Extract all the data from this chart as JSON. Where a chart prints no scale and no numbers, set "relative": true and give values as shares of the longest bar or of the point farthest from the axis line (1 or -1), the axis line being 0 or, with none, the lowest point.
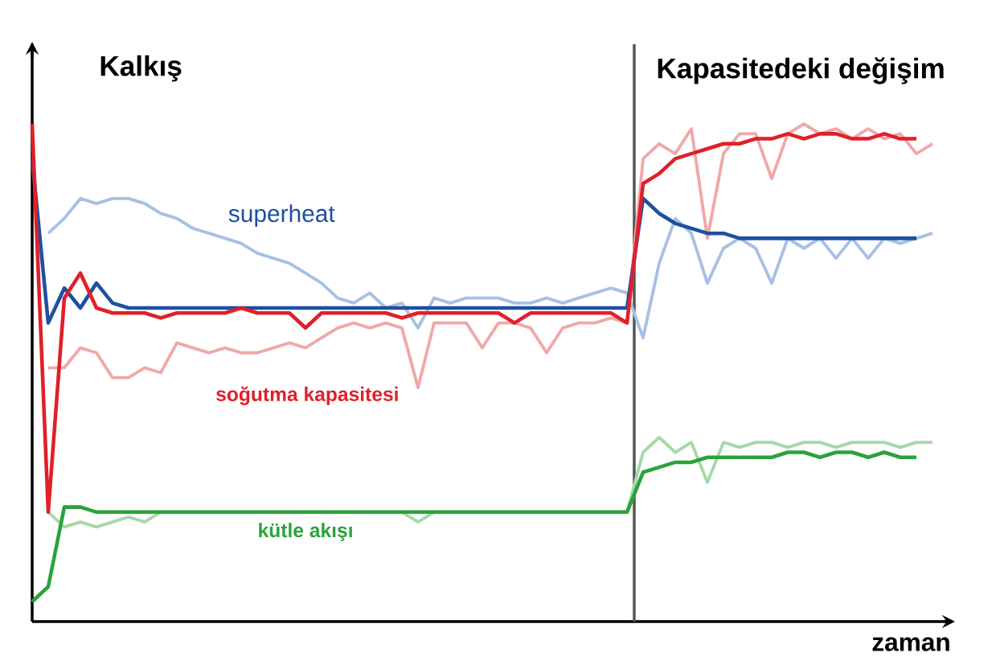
{
  "chart_data": {
    "type": "line",
    "relative": true,
    "xlabel": "zaman",
    "annotations": [
      "Kalkış",
      "Kapasitedeki değişim"
    ],
    "categories": [
      null,
      null,
      null,
      null,
      null,
      null,
      null,
      null,
      null,
      null,
      null,
      null,
      null,
      null,
      null,
      null,
      null,
      null,
      null,
      null,
      null,
      null,
      null,
      null,
      null,
      null,
      null,
      null,
      null,
      null,
      null,
      null,
      null,
      null,
      null,
      null,
      null,
      null,
      null,
      null,
      null,
      null,
      null,
      null,
      null,
      null,
      null,
      null,
      null,
      null,
      null,
      null,
      null,
      null,
      null,
      null,
      null
    ],
    "marker": "none",
    "line_style": "solid",
    "series": [
      {
        "color": "#a8c0e4",
        "values": [
          null,
          0.78,
          0.81,
          0.85,
          0.84,
          0.85,
          0.85,
          0.84,
          0.82,
          0.81,
          0.79,
          0.78,
          0.77,
          0.76,
          0.74,
          0.73,
          0.72,
          0.7,
          0.68,
          0.65,
          0.64,
          0.66,
          0.63,
          0.64,
          0.59,
          0.65,
          0.64,
          0.65,
          0.65,
          0.65,
          0.64,
          0.64,
          0.65,
          0.64,
          0.65,
          0.66,
          0.67,
          0.66,
          0.57,
          0.72,
          0.81,
          0.78,
          0.68,
          0.75,
          0.77,
          0.75,
          0.68,
          0.77,
          0.75,
          0.77,
          0.73,
          0.77,
          0.73,
          0.77,
          0.76,
          0.77,
          0.78
        ]
      },
      {
        "color": "#f0a8a8",
        "values": [
          null,
          0.51,
          0.51,
          0.55,
          0.54,
          0.49,
          0.49,
          0.51,
          0.5,
          0.56,
          0.55,
          0.54,
          0.55,
          0.54,
          0.54,
          0.55,
          0.56,
          0.55,
          0.57,
          0.59,
          0.6,
          0.59,
          0.6,
          0.59,
          0.47,
          0.6,
          0.6,
          0.6,
          0.55,
          0.6,
          0.6,
          0.59,
          0.54,
          0.59,
          0.6,
          0.6,
          0.61,
          0.6,
          0.93,
          0.96,
          0.94,
          0.99,
          0.77,
          0.94,
          0.98,
          0.98,
          0.89,
          0.98,
          1.0,
          0.98,
          0.99,
          0.97,
          0.99,
          0.97,
          0.98,
          0.94,
          0.96
        ]
      },
      {
        "color": "#a6d8a8",
        "values": [
          null,
          0.22,
          0.19,
          0.2,
          0.19,
          0.2,
          0.21,
          0.2,
          0.22,
          0.22,
          0.22,
          0.22,
          0.22,
          0.22,
          0.22,
          0.22,
          0.22,
          0.22,
          0.22,
          0.22,
          0.22,
          0.22,
          0.22,
          0.22,
          0.2,
          0.22,
          0.22,
          0.22,
          0.22,
          0.22,
          0.22,
          0.22,
          0.22,
          0.22,
          0.22,
          0.22,
          0.22,
          0.22,
          0.34,
          0.37,
          0.34,
          0.36,
          0.28,
          0.36,
          0.35,
          0.36,
          0.36,
          0.35,
          0.36,
          0.36,
          0.35,
          0.36,
          0.36,
          0.36,
          0.35,
          0.36,
          0.36
        ]
      },
      {
        "name": "superheat",
        "color": "#1f4fa0",
        "values": [
          0.93,
          0.6,
          0.67,
          0.63,
          0.68,
          0.64,
          0.63,
          0.63,
          0.63,
          0.63,
          0.63,
          0.63,
          0.63,
          0.63,
          0.63,
          0.63,
          0.63,
          0.63,
          0.63,
          0.63,
          0.63,
          0.63,
          0.63,
          0.63,
          0.63,
          0.63,
          0.63,
          0.63,
          0.63,
          0.63,
          0.63,
          0.63,
          0.63,
          0.63,
          0.63,
          0.63,
          0.63,
          0.63,
          0.85,
          0.82,
          0.8,
          0.79,
          0.78,
          0.78,
          0.77,
          0.77,
          0.77,
          0.77,
          0.77,
          0.77,
          0.77,
          0.77,
          0.77,
          0.77,
          0.77,
          0.77,
          null
        ]
      },
      {
        "name": "soğutma kapasitesi",
        "color": "#e0202a",
        "values": [
          1.0,
          0.22,
          0.65,
          0.7,
          0.63,
          0.62,
          0.62,
          0.62,
          0.61,
          0.62,
          0.62,
          0.62,
          0.62,
          0.63,
          0.62,
          0.62,
          0.62,
          0.59,
          0.62,
          0.62,
          0.62,
          0.62,
          0.62,
          0.61,
          0.62,
          0.62,
          0.62,
          0.62,
          0.62,
          0.62,
          0.6,
          0.62,
          0.62,
          0.62,
          0.62,
          0.62,
          0.62,
          0.6,
          0.88,
          0.9,
          0.93,
          0.94,
          0.95,
          0.96,
          0.96,
          0.97,
          0.97,
          0.98,
          0.97,
          0.98,
          0.98,
          0.97,
          0.97,
          0.98,
          0.97,
          0.97,
          null
        ]
      },
      {
        "name": "kütle akışı",
        "color": "#2aa33a",
        "values": [
          0.04,
          0.07,
          0.23,
          0.23,
          0.22,
          0.22,
          0.22,
          0.22,
          0.22,
          0.22,
          0.22,
          0.22,
          0.22,
          0.22,
          0.22,
          0.22,
          0.22,
          0.22,
          0.22,
          0.22,
          0.22,
          0.22,
          0.22,
          0.22,
          0.22,
          0.22,
          0.22,
          0.22,
          0.22,
          0.22,
          0.22,
          0.22,
          0.22,
          0.22,
          0.22,
          0.22,
          0.22,
          0.22,
          0.3,
          0.31,
          0.32,
          0.32,
          0.33,
          0.33,
          0.33,
          0.33,
          0.33,
          0.34,
          0.34,
          0.33,
          0.34,
          0.34,
          0.33,
          0.34,
          0.33,
          0.33,
          null
        ]
      }
    ]
  }
}
